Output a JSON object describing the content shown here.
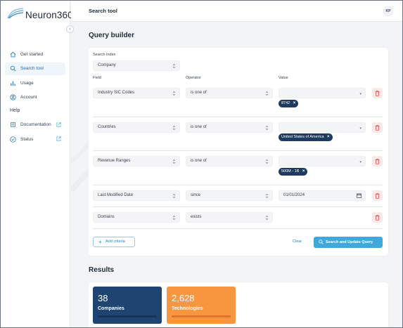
{
  "app": {
    "name": "Neuron360",
    "collapse_glyph": "‹"
  },
  "sidebar": {
    "items": [
      {
        "label": "Get started",
        "icon": "home-icon",
        "active": false
      },
      {
        "label": "Search tool",
        "icon": "search-icon",
        "active": true
      },
      {
        "label": "Usage",
        "icon": "bar-chart-icon",
        "active": false
      },
      {
        "label": "Account",
        "icon": "user-circle-icon",
        "active": false
      }
    ],
    "help_heading": "Help",
    "help_items": [
      {
        "label": "Documentation",
        "icon": "document-icon",
        "external": true
      },
      {
        "label": "Status",
        "icon": "check-circle-icon",
        "external": true
      }
    ]
  },
  "topbar": {
    "title": "Search tool",
    "avatar_initials": "KP"
  },
  "query_builder": {
    "heading": "Query builder",
    "search_index_label": "Search Index",
    "search_index_value": "Company",
    "column_field": "Field",
    "column_operator": "Operator",
    "column_value": "Value",
    "rows": [
      {
        "field": "Industry SIC Codes",
        "operator": "is one of",
        "chips": [
          "8742"
        ]
      },
      {
        "field": "Countries",
        "operator": "is one of",
        "chips": [
          "United States of America"
        ]
      },
      {
        "field": "Revenue Ranges",
        "operator": "is one of",
        "chips": [
          "500M - 1B"
        ]
      },
      {
        "field": "Last Modified Date",
        "operator": "since",
        "date_value": "01/01/2024"
      },
      {
        "field": "Domains",
        "operator": "exists"
      }
    ],
    "add_criteria_label": "Add criteria",
    "clear_label": "Clear",
    "search_label": "Search and Update Query"
  },
  "results": {
    "heading": "Results",
    "cards": [
      {
        "count": "38",
        "label": "Companies",
        "color": "#1f4472"
      },
      {
        "count": "2,628",
        "label": "Technologies",
        "color": "#f7963e"
      }
    ]
  },
  "colors": {
    "accent": "#3fa9dc",
    "chip": "#1e3a5f",
    "danger_bg": "#fde8e8"
  }
}
